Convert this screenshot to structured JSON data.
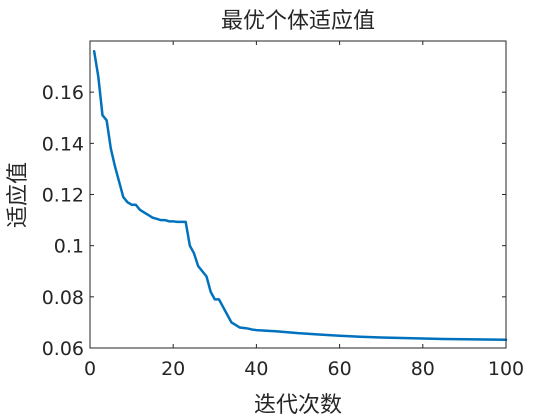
{
  "chart_data": {
    "type": "line",
    "title": "最优个体适应值",
    "xlabel": "迭代次数",
    "ylabel": "适应值",
    "xlim": [
      0,
      100
    ],
    "ylim": [
      0.06,
      0.18
    ],
    "xticks": [
      0,
      20,
      40,
      60,
      80,
      100
    ],
    "yticks": [
      0.06,
      0.08,
      0.1,
      0.12,
      0.14,
      0.16
    ],
    "xtick_labels": [
      "0",
      "20",
      "40",
      "60",
      "80",
      "100"
    ],
    "ytick_labels": [
      "0.06",
      "0.08",
      "0.1",
      "0.12",
      "0.14",
      "0.16"
    ],
    "grid": false,
    "legend": "none",
    "series": [
      {
        "color": "#0072BD",
        "x": [
          1,
          2,
          3,
          4,
          5,
          6,
          7,
          8,
          9,
          10,
          11,
          12,
          13,
          14,
          15,
          16,
          17,
          18,
          19,
          20,
          21,
          22,
          23,
          24,
          25,
          26,
          27,
          28,
          29,
          30,
          31,
          32,
          33,
          34,
          35,
          36,
          37,
          38,
          39,
          40,
          45,
          50,
          55,
          60,
          65,
          70,
          75,
          80,
          85,
          90,
          95,
          100
        ],
        "y": [
          0.176,
          0.166,
          0.151,
          0.149,
          0.138,
          0.131,
          0.125,
          0.119,
          0.117,
          0.116,
          0.116,
          0.114,
          0.113,
          0.112,
          0.111,
          0.1105,
          0.11,
          0.11,
          0.1095,
          0.1095,
          0.1093,
          0.1093,
          0.1093,
          0.1,
          0.097,
          0.092,
          0.09,
          0.088,
          0.082,
          0.079,
          0.079,
          0.076,
          0.073,
          0.07,
          0.069,
          0.068,
          0.0678,
          0.0676,
          0.0672,
          0.067,
          0.0665,
          0.0658,
          0.0653,
          0.0648,
          0.0644,
          0.0641,
          0.0639,
          0.0637,
          0.0635,
          0.0634,
          0.0633,
          0.0632
        ]
      }
    ]
  }
}
